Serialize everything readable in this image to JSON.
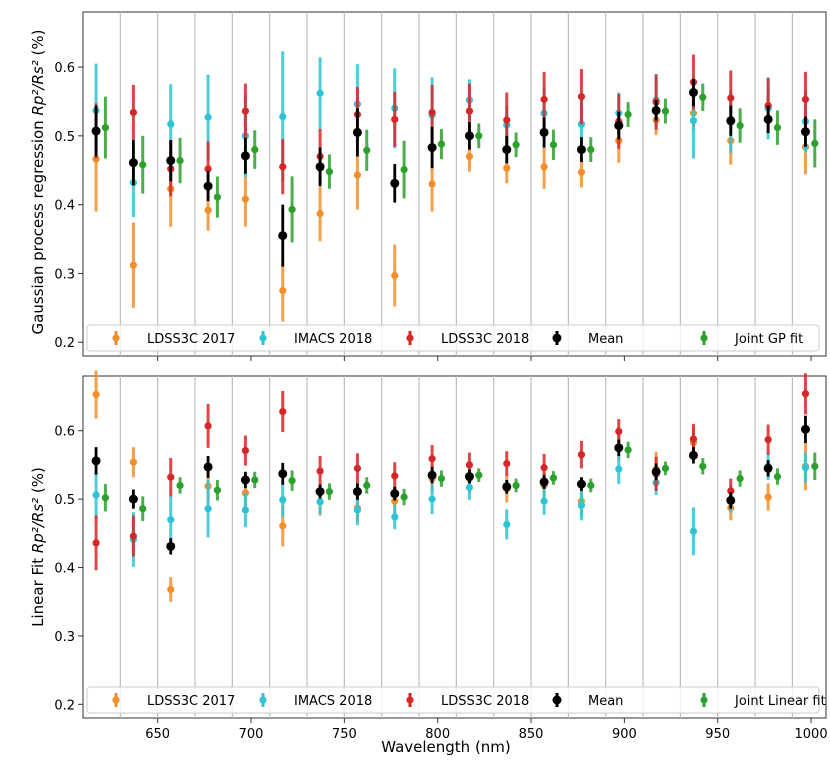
{
  "colors": {
    "LDSS3C 2017": "#f28e2b",
    "IMACS 2018": "#2ec4d6",
    "LDSS3C 2018": "#d62728",
    "Mean": "#000000",
    "Joint": "#2ca02c"
  },
  "chart_data": [
    {
      "type": "errorbar",
      "ylabel_main": "Gaussian process regression ",
      "ylabel_tex": "Rp²/Rs²",
      "ylabel_unit": " (%)",
      "ylim": [
        0.18,
        0.68
      ],
      "yticks": [
        0.2,
        0.3,
        0.4,
        0.5,
        0.6
      ],
      "xlim": [
        610,
        1008
      ],
      "bin_edges": [
        630,
        650,
        670,
        690,
        710,
        730,
        750,
        770,
        790,
        810,
        830,
        850,
        870,
        890,
        910,
        930,
        950,
        970,
        990
      ],
      "legend": [
        "LDSS3C 2017",
        "IMACS 2018",
        "LDSS3C 2018",
        "Mean",
        "Joint GP fit"
      ],
      "series": [
        {
          "name": "LDSS3C 2017",
          "offset": 0,
          "values": [
            0.466,
            0.312,
            0.423,
            0.392,
            0.408,
            0.275,
            0.387,
            0.443,
            0.297,
            0.43,
            0.47,
            0.453,
            0.455,
            0.447,
            0.493,
            0.523,
            0.533,
            0.493,
            0.543,
            0.484
          ],
          "errors": [
            0.076,
            0.062,
            0.055,
            0.03,
            0.04,
            0.045,
            0.04,
            0.05,
            0.045,
            0.04,
            0.022,
            0.022,
            0.032,
            0.022,
            0.032,
            0.022,
            0.025,
            0.035,
            0.022,
            0.04
          ]
        },
        {
          "name": "IMACS 2018",
          "offset": 0,
          "values": [
            0.537,
            0.432,
            0.517,
            0.527,
            0.5,
            0.528,
            0.562,
            0.546,
            0.54,
            0.53,
            0.552,
            0.516,
            0.533,
            0.517,
            0.533,
            0.552,
            0.522,
            0.52,
            0.54,
            0.521
          ],
          "errors": [
            0.068,
            0.05,
            0.058,
            0.062,
            0.06,
            0.095,
            0.052,
            0.058,
            0.058,
            0.055,
            0.03,
            0.028,
            0.038,
            0.04,
            0.03,
            0.038,
            0.055,
            0.045,
            0.045,
            0.045
          ]
        },
        {
          "name": "LDSS3C 2018",
          "offset": 0,
          "values": [
            0.507,
            0.534,
            0.452,
            0.452,
            0.536,
            0.455,
            0.47,
            0.531,
            0.524,
            0.534,
            0.536,
            0.523,
            0.553,
            0.557,
            0.521,
            0.549,
            0.578,
            0.555,
            0.544,
            0.553
          ]
        },
        {
          "name": "Mean",
          "offset": 0,
          "values": [
            0.507,
            0.461,
            0.464,
            0.427,
            0.471,
            0.355,
            0.455,
            0.505,
            0.431,
            0.483,
            0.5,
            0.48,
            0.505,
            0.48,
            0.515,
            0.537,
            0.563,
            0.522,
            0.524,
            0.506
          ],
          "errors": [
            0.037,
            0.033,
            0.03,
            0.022,
            0.026,
            0.045,
            0.028,
            0.035,
            0.028,
            0.03,
            0.02,
            0.02,
            0.022,
            0.018,
            0.02,
            0.015,
            0.02,
            0.022,
            0.02,
            0.022
          ]
        },
        {
          "name": "Joint GP fit",
          "offset": 5,
          "values": [
            0.512,
            0.458,
            0.464,
            0.411,
            0.48,
            0.393,
            0.448,
            0.479,
            0.451,
            0.488,
            0.5,
            0.487,
            0.487,
            0.48,
            0.531,
            0.536,
            0.556,
            0.515,
            0.512,
            0.489
          ],
          "errors": [
            0.045,
            0.042,
            0.033,
            0.03,
            0.028,
            0.048,
            0.025,
            0.03,
            0.042,
            0.022,
            0.018,
            0.018,
            0.022,
            0.018,
            0.018,
            0.018,
            0.02,
            0.025,
            0.025,
            0.035
          ]
        }
      ]
    },
    {
      "type": "errorbar",
      "ylabel_main": "Linear Fit ",
      "ylabel_tex": "Rp²/Rs²",
      "ylabel_unit": " (%)",
      "xlabel": "Wavelength (nm)",
      "ylim": [
        0.18,
        0.68
      ],
      "yticks": [
        0.2,
        0.3,
        0.4,
        0.5,
        0.6
      ],
      "xticks": [
        650,
        700,
        750,
        800,
        850,
        900,
        950,
        1000
      ],
      "xlim": [
        610,
        1008
      ],
      "bin_edges": [
        630,
        650,
        670,
        690,
        710,
        730,
        750,
        770,
        790,
        810,
        830,
        850,
        870,
        890,
        910,
        930,
        950,
        970,
        990
      ],
      "legend": [
        "LDSS3C 2017",
        "IMACS 2018",
        "LDSS3C 2018",
        "Mean",
        "Joint Linear fit"
      ],
      "series": [
        {
          "name": "LDSS3C 2017",
          "offset": 0,
          "values": [
            0.653,
            0.554,
            0.368,
            0.519,
            0.509,
            0.461,
            0.496,
            0.487,
            0.497,
            0.53,
            0.53,
            0.515,
            0.52,
            0.497,
            0.576,
            0.544,
            0.583,
            0.487,
            0.503,
            0.548
          ],
          "errors": [
            0.035,
            0.022,
            0.018,
            0.025,
            0.02,
            0.03,
            0.02,
            0.02,
            0.02,
            0.02,
            0.02,
            0.02,
            0.018,
            0.02,
            0.02,
            0.025,
            0.022,
            0.018,
            0.02,
            0.035
          ]
        },
        {
          "name": "IMACS 2018",
          "offset": 0,
          "values": [
            0.506,
            0.441,
            0.47,
            0.486,
            0.484,
            0.499,
            0.496,
            0.484,
            0.474,
            0.5,
            0.517,
            0.463,
            0.497,
            0.491,
            0.544,
            0.524,
            0.453,
            0.5,
            0.548,
            0.546
          ],
          "errors": [
            0.035,
            0.04,
            0.035,
            0.042,
            0.025,
            0.025,
            0.018,
            0.022,
            0.018,
            0.022,
            0.018,
            0.022,
            0.02,
            0.022,
            0.022,
            0.018,
            0.035,
            0.02,
            0.02,
            0.022
          ]
        },
        {
          "name": "LDSS3C 2018",
          "offset": 0,
          "values": [
            0.436,
            0.446,
            0.532,
            0.607,
            0.571,
            0.628,
            0.541,
            0.545,
            0.534,
            0.559,
            0.55,
            0.552,
            0.546,
            0.565,
            0.599,
            0.537,
            0.588,
            0.512,
            0.587,
            0.654
          ],
          "errors": [
            0.04,
            0.03,
            0.028,
            0.032,
            0.022,
            0.03,
            0.022,
            0.022,
            0.02,
            0.02,
            0.018,
            0.018,
            0.02,
            0.02,
            0.018,
            0.025,
            0.022,
            0.018,
            0.022,
            0.03
          ]
        },
        {
          "name": "Mean",
          "offset": 0,
          "values": [
            0.556,
            0.5,
            0.431,
            0.547,
            0.528,
            0.537,
            0.511,
            0.511,
            0.508,
            0.535,
            0.533,
            0.518,
            0.525,
            0.522,
            0.575,
            0.54,
            0.564,
            0.498,
            0.545,
            0.602
          ],
          "errors": [
            0.02,
            0.014,
            0.012,
            0.016,
            0.012,
            0.016,
            0.01,
            0.012,
            0.01,
            0.012,
            0.01,
            0.01,
            0.01,
            0.01,
            0.012,
            0.012,
            0.012,
            0.012,
            0.012,
            0.02
          ]
        },
        {
          "name": "Joint Linear fit",
          "offset": 5,
          "values": [
            0.502,
            0.486,
            0.52,
            0.513,
            0.528,
            0.527,
            0.511,
            0.52,
            0.503,
            0.53,
            0.535,
            0.52,
            0.531,
            0.52,
            0.572,
            0.545,
            0.548,
            0.53,
            0.533,
            0.548
          ],
          "errors": [
            0.02,
            0.018,
            0.012,
            0.015,
            0.012,
            0.015,
            0.012,
            0.012,
            0.012,
            0.012,
            0.01,
            0.01,
            0.01,
            0.01,
            0.012,
            0.01,
            0.012,
            0.012,
            0.012,
            0.02
          ]
        }
      ]
    }
  ],
  "x_points": [
    617,
    637,
    657,
    677,
    697,
    717,
    737,
    757,
    777,
    797,
    817,
    837,
    857,
    877,
    897,
    917,
    937,
    957,
    977,
    997
  ]
}
